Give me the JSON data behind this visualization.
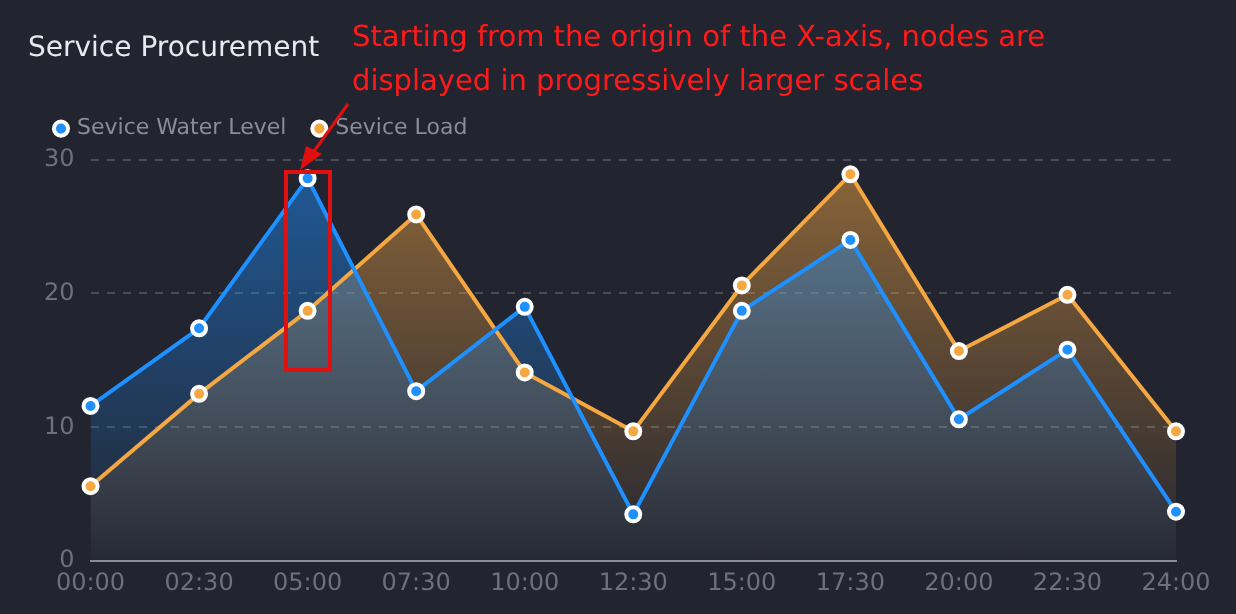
{
  "chart_data": {
    "type": "area",
    "title": "Service Procurement",
    "annotations": [
      "Starting from the origin of the X-axis, nodes are displayed in progressively larger scales"
    ],
    "categories": [
      "00:00",
      "02:30",
      "05:00",
      "07:30",
      "10:00",
      "12:30",
      "15:00",
      "17:30",
      "20:00",
      "22:30",
      "24:00"
    ],
    "series": [
      {
        "name": "Sevice Water Level",
        "color": "#1e90ff",
        "values": [
          11.6,
          17.4,
          28.6,
          12.7,
          19,
          3.5,
          18.7,
          24,
          10.6,
          15.8,
          3.7
        ]
      },
      {
        "name": "Sevice Load",
        "color": "#f5a742",
        "values": [
          5.6,
          12.5,
          18.7,
          25.9,
          14.1,
          9.7,
          20.6,
          28.9,
          15.7,
          19.9,
          9.7
        ]
      }
    ],
    "ylim": [
      0,
      30
    ],
    "yticks": [
      0,
      10,
      20,
      30
    ],
    "grid": "y",
    "legend": "top left",
    "marker": "circle",
    "line_style": "solid"
  }
}
